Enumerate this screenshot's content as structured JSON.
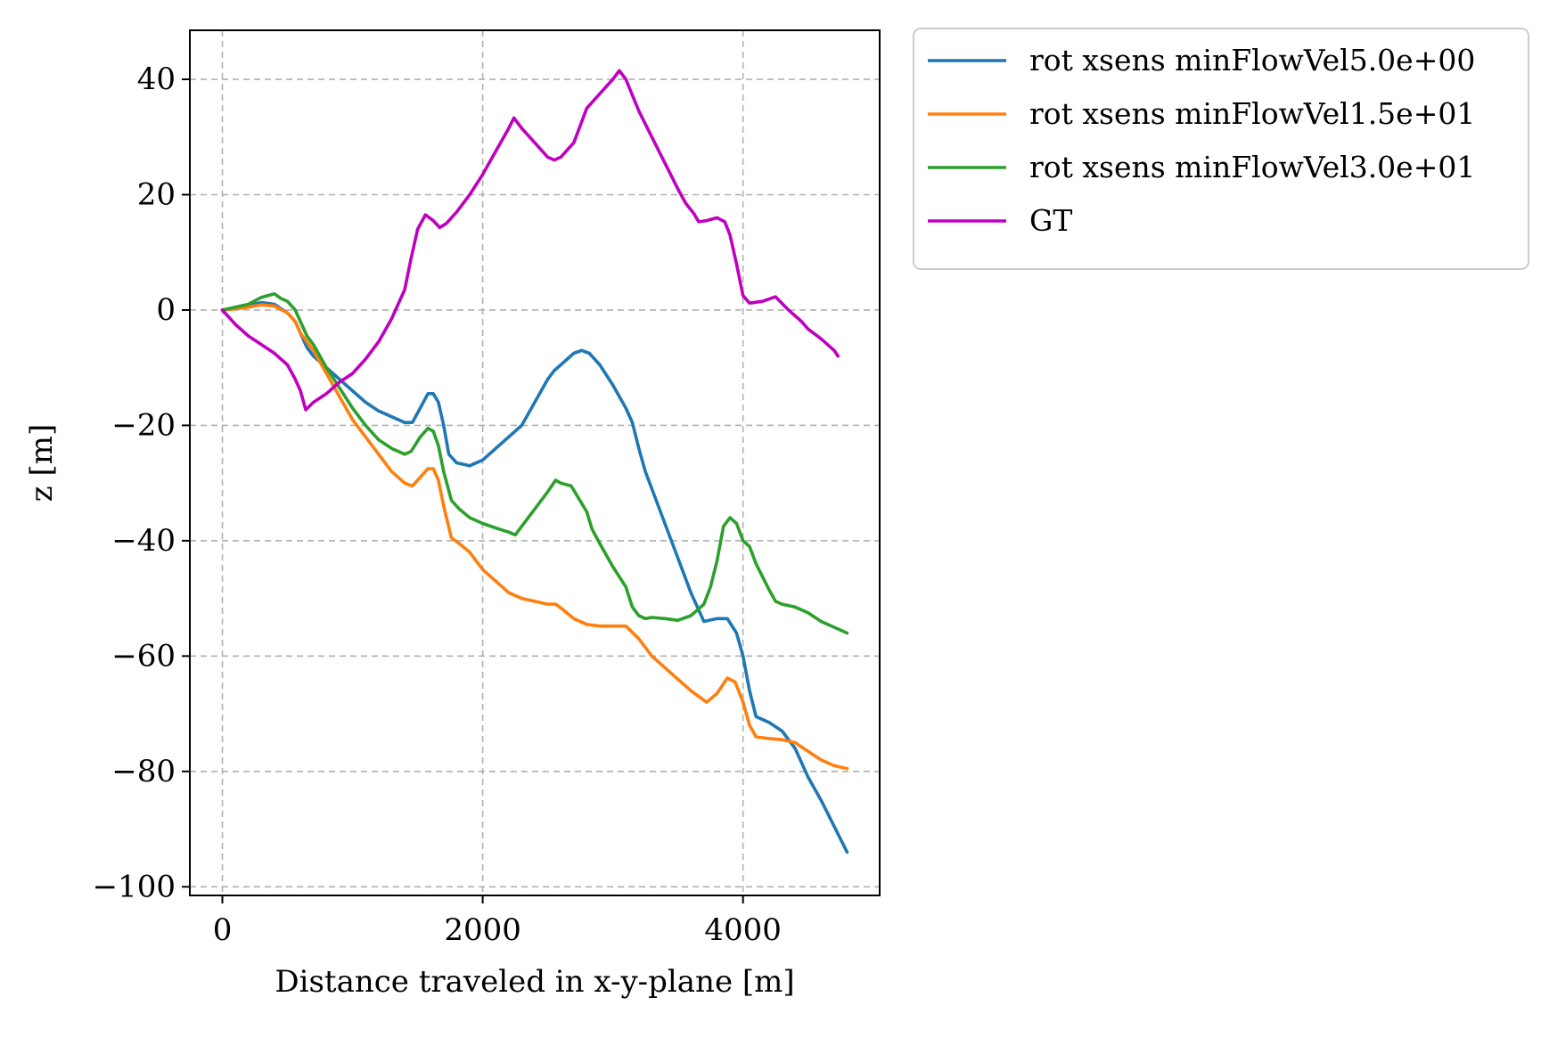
{
  "chart_data": {
    "type": "line",
    "title": "",
    "xlabel": "Distance traveled in x-y-plane [m]",
    "ylabel": "z [m]",
    "xlim": [
      -250,
      5050
    ],
    "ylim": [
      -101.5,
      48.5
    ],
    "xticks": [
      0,
      2000,
      4000
    ],
    "yticks": [
      40,
      20,
      0,
      -20,
      -40,
      -60,
      -80,
      -100
    ],
    "xtick_labels": [
      "0",
      "2000",
      "4000"
    ],
    "ytick_labels": [
      "40",
      "20",
      "0",
      "−20",
      "−40",
      "−60",
      "−80",
      "−100"
    ],
    "grid": true,
    "legend_position": "outside-top-right",
    "series": [
      {
        "name": "rot xsens minFlowVel5.0e+00",
        "color": "#1f77b4",
        "points": [
          [
            0,
            0
          ],
          [
            100,
            0.3
          ],
          [
            200,
            0.8
          ],
          [
            300,
            1.3
          ],
          [
            400,
            1.0
          ],
          [
            500,
            -0.5
          ],
          [
            560,
            -2
          ],
          [
            600,
            -4
          ],
          [
            650,
            -6.5
          ],
          [
            700,
            -8
          ],
          [
            800,
            -10
          ],
          [
            900,
            -12
          ],
          [
            1000,
            -14
          ],
          [
            1100,
            -16
          ],
          [
            1200,
            -17.5
          ],
          [
            1300,
            -18.5
          ],
          [
            1400,
            -19.5
          ],
          [
            1460,
            -19.5
          ],
          [
            1520,
            -17
          ],
          [
            1580,
            -14.5
          ],
          [
            1620,
            -14.5
          ],
          [
            1660,
            -16
          ],
          [
            1700,
            -20
          ],
          [
            1740,
            -25
          ],
          [
            1800,
            -26.5
          ],
          [
            1900,
            -27
          ],
          [
            2000,
            -26
          ],
          [
            2100,
            -24
          ],
          [
            2200,
            -22
          ],
          [
            2300,
            -20
          ],
          [
            2400,
            -16
          ],
          [
            2500,
            -12
          ],
          [
            2550,
            -10.5
          ],
          [
            2600,
            -9.5
          ],
          [
            2650,
            -8.5
          ],
          [
            2700,
            -7.5
          ],
          [
            2760,
            -7
          ],
          [
            2820,
            -7.5
          ],
          [
            2900,
            -9.5
          ],
          [
            3000,
            -13
          ],
          [
            3100,
            -17
          ],
          [
            3150,
            -19.5
          ],
          [
            3200,
            -24
          ],
          [
            3250,
            -28
          ],
          [
            3300,
            -31
          ],
          [
            3400,
            -37
          ],
          [
            3500,
            -43
          ],
          [
            3600,
            -49
          ],
          [
            3700,
            -54
          ],
          [
            3800,
            -53.5
          ],
          [
            3880,
            -53.5
          ],
          [
            3950,
            -56
          ],
          [
            4000,
            -60
          ],
          [
            4050,
            -66
          ],
          [
            4100,
            -70.5
          ],
          [
            4200,
            -71.5
          ],
          [
            4300,
            -73
          ],
          [
            4400,
            -76
          ],
          [
            4500,
            -81
          ],
          [
            4600,
            -85
          ],
          [
            4700,
            -89.5
          ],
          [
            4800,
            -94
          ]
        ]
      },
      {
        "name": "rot xsens minFlowVel1.5e+01",
        "color": "#ff7f0e",
        "points": [
          [
            0,
            0
          ],
          [
            100,
            0.2
          ],
          [
            200,
            0.5
          ],
          [
            300,
            0.9
          ],
          [
            400,
            0.7
          ],
          [
            500,
            -0.5
          ],
          [
            560,
            -2
          ],
          [
            600,
            -4
          ],
          [
            700,
            -7
          ],
          [
            800,
            -11
          ],
          [
            900,
            -15
          ],
          [
            1000,
            -19
          ],
          [
            1100,
            -22
          ],
          [
            1200,
            -25
          ],
          [
            1300,
            -28
          ],
          [
            1400,
            -30
          ],
          [
            1460,
            -30.5
          ],
          [
            1520,
            -29
          ],
          [
            1580,
            -27.5
          ],
          [
            1620,
            -27.5
          ],
          [
            1660,
            -29.5
          ],
          [
            1700,
            -34
          ],
          [
            1760,
            -39.5
          ],
          [
            1820,
            -40.5
          ],
          [
            1900,
            -42
          ],
          [
            2000,
            -45
          ],
          [
            2100,
            -47
          ],
          [
            2200,
            -49
          ],
          [
            2300,
            -50
          ],
          [
            2400,
            -50.5
          ],
          [
            2500,
            -51
          ],
          [
            2560,
            -51
          ],
          [
            2620,
            -52
          ],
          [
            2700,
            -53.5
          ],
          [
            2800,
            -54.5
          ],
          [
            2900,
            -54.8
          ],
          [
            3000,
            -54.8
          ],
          [
            3100,
            -54.8
          ],
          [
            3200,
            -57
          ],
          [
            3300,
            -60
          ],
          [
            3400,
            -62
          ],
          [
            3500,
            -64
          ],
          [
            3600,
            -66
          ],
          [
            3660,
            -67
          ],
          [
            3720,
            -68
          ],
          [
            3800,
            -66.5
          ],
          [
            3880,
            -63.8
          ],
          [
            3940,
            -64.5
          ],
          [
            4000,
            -68
          ],
          [
            4050,
            -72
          ],
          [
            4100,
            -74
          ],
          [
            4200,
            -74.3
          ],
          [
            4300,
            -74.5
          ],
          [
            4400,
            -75
          ],
          [
            4500,
            -76.5
          ],
          [
            4600,
            -78
          ],
          [
            4700,
            -79
          ],
          [
            4800,
            -79.5
          ]
        ]
      },
      {
        "name": "rot xsens minFlowVel3.0e+01",
        "color": "#2ca02c",
        "points": [
          [
            0,
            0
          ],
          [
            100,
            0.5
          ],
          [
            200,
            1.0
          ],
          [
            300,
            2.2
          ],
          [
            400,
            2.8
          ],
          [
            450,
            2.0
          ],
          [
            500,
            1.5
          ],
          [
            560,
            0
          ],
          [
            600,
            -2
          ],
          [
            650,
            -4.5
          ],
          [
            700,
            -6
          ],
          [
            800,
            -10
          ],
          [
            900,
            -13.5
          ],
          [
            1000,
            -17
          ],
          [
            1100,
            -20
          ],
          [
            1200,
            -22.5
          ],
          [
            1300,
            -24
          ],
          [
            1400,
            -25
          ],
          [
            1450,
            -24.5
          ],
          [
            1520,
            -22
          ],
          [
            1580,
            -20.5
          ],
          [
            1620,
            -21
          ],
          [
            1660,
            -23.5
          ],
          [
            1700,
            -28
          ],
          [
            1760,
            -33
          ],
          [
            1820,
            -34.5
          ],
          [
            1900,
            -36
          ],
          [
            2000,
            -37
          ],
          [
            2100,
            -37.8
          ],
          [
            2200,
            -38.5
          ],
          [
            2250,
            -39
          ],
          [
            2300,
            -37.5
          ],
          [
            2400,
            -34.5
          ],
          [
            2500,
            -31.5
          ],
          [
            2560,
            -29.5
          ],
          [
            2600,
            -30
          ],
          [
            2680,
            -30.5
          ],
          [
            2720,
            -32
          ],
          [
            2800,
            -35
          ],
          [
            2840,
            -38
          ],
          [
            2900,
            -40.5
          ],
          [
            3000,
            -44.5
          ],
          [
            3100,
            -48
          ],
          [
            3150,
            -51.5
          ],
          [
            3200,
            -53
          ],
          [
            3250,
            -53.5
          ],
          [
            3300,
            -53.3
          ],
          [
            3400,
            -53.5
          ],
          [
            3500,
            -53.8
          ],
          [
            3600,
            -53
          ],
          [
            3700,
            -51
          ],
          [
            3750,
            -48
          ],
          [
            3800,
            -43.5
          ],
          [
            3850,
            -37.5
          ],
          [
            3900,
            -36
          ],
          [
            3950,
            -37
          ],
          [
            4000,
            -40
          ],
          [
            4050,
            -41
          ],
          [
            4100,
            -44
          ],
          [
            4200,
            -48.5
          ],
          [
            4250,
            -50.5
          ],
          [
            4300,
            -51
          ],
          [
            4400,
            -51.5
          ],
          [
            4500,
            -52.5
          ],
          [
            4600,
            -54
          ],
          [
            4700,
            -55
          ],
          [
            4800,
            -56
          ]
        ]
      },
      {
        "name": "GT",
        "color": "#bf00bf",
        "points": [
          [
            0,
            0
          ],
          [
            100,
            -2.5
          ],
          [
            200,
            -4.5
          ],
          [
            300,
            -6
          ],
          [
            400,
            -7.5
          ],
          [
            500,
            -9.5
          ],
          [
            560,
            -12
          ],
          [
            600,
            -14
          ],
          [
            640,
            -17.3
          ],
          [
            700,
            -16
          ],
          [
            800,
            -14.5
          ],
          [
            900,
            -12.5
          ],
          [
            1000,
            -11
          ],
          [
            1100,
            -8.5
          ],
          [
            1200,
            -5.5
          ],
          [
            1300,
            -1.5
          ],
          [
            1400,
            3.5
          ],
          [
            1450,
            9
          ],
          [
            1500,
            14
          ],
          [
            1560,
            16.5
          ],
          [
            1620,
            15.5
          ],
          [
            1670,
            14.3
          ],
          [
            1720,
            15
          ],
          [
            1800,
            17
          ],
          [
            1900,
            20
          ],
          [
            2000,
            23.5
          ],
          [
            2100,
            27.5
          ],
          [
            2200,
            31.5
          ],
          [
            2240,
            33.3
          ],
          [
            2300,
            31.5
          ],
          [
            2400,
            29
          ],
          [
            2500,
            26.5
          ],
          [
            2550,
            26
          ],
          [
            2600,
            26.5
          ],
          [
            2700,
            29
          ],
          [
            2800,
            35
          ],
          [
            2900,
            37.5
          ],
          [
            3000,
            40
          ],
          [
            3050,
            41.5
          ],
          [
            3100,
            40
          ],
          [
            3200,
            34.5
          ],
          [
            3300,
            30
          ],
          [
            3400,
            25.5
          ],
          [
            3500,
            21
          ],
          [
            3560,
            18.5
          ],
          [
            3620,
            16.8
          ],
          [
            3660,
            15.3
          ],
          [
            3720,
            15.5
          ],
          [
            3800,
            16
          ],
          [
            3860,
            15.3
          ],
          [
            3900,
            13
          ],
          [
            3950,
            8
          ],
          [
            4000,
            2.5
          ],
          [
            4050,
            1.2
          ],
          [
            4150,
            1.5
          ],
          [
            4250,
            2.3
          ],
          [
            4350,
            0
          ],
          [
            4450,
            -2
          ],
          [
            4500,
            -3.3
          ],
          [
            4600,
            -5
          ],
          [
            4700,
            -7
          ],
          [
            4730,
            -8
          ]
        ]
      }
    ]
  }
}
